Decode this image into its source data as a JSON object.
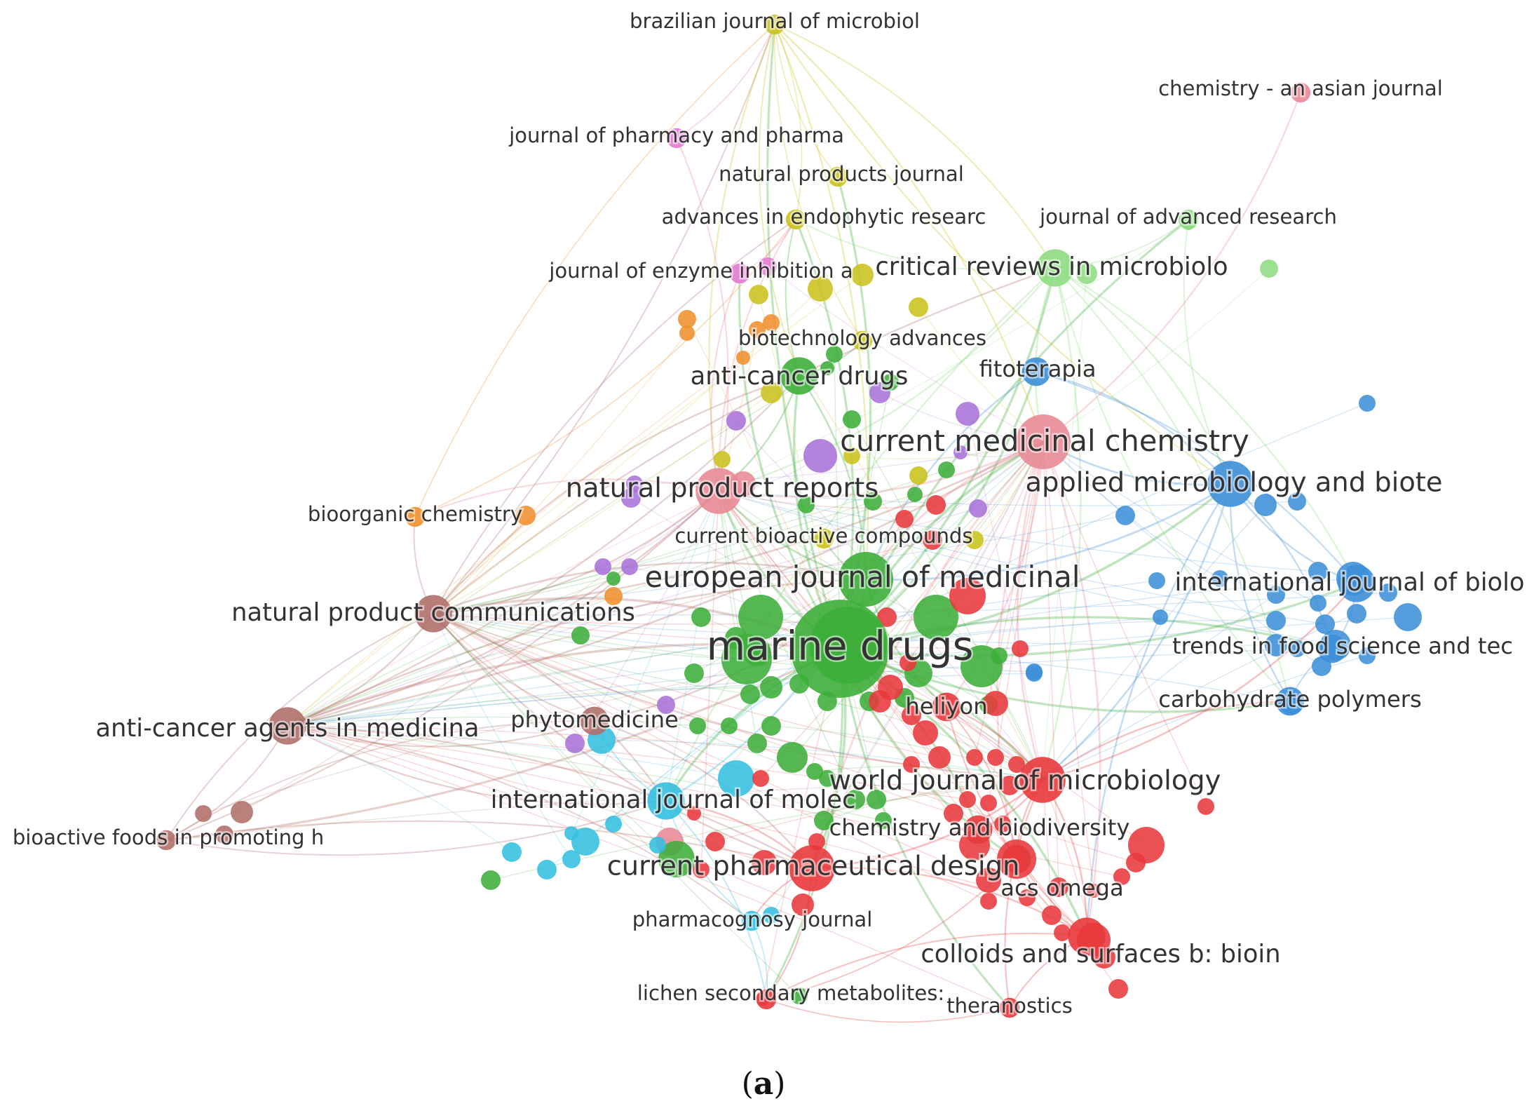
{
  "figure": {
    "caption_open": "(",
    "caption_letter": "a",
    "caption_close": ")"
  },
  "clusters": {
    "red": "#e8393c",
    "green": "#3dae3a",
    "blue": "#3d8fd8",
    "yellow": "#c9c31c",
    "purple": "#a872d8",
    "cyan": "#33bfe0",
    "orange": "#f0902e",
    "brown": "#b0706a",
    "pink": "#e88a96",
    "magenta": "#e07ad0",
    "lightgreen": "#8fdc83"
  },
  "labeled_nodes": [
    {
      "id": "brazilian",
      "label": "brazilian journal of microbiol",
      "cluster": "yellow",
      "weight": 1
    },
    {
      "id": "asian",
      "label": "chemistry - an asian journal",
      "cluster": "pink",
      "weight": 1
    },
    {
      "id": "pharmapharma",
      "label": "journal of pharmacy and pharma",
      "cluster": "magenta",
      "weight": 1
    },
    {
      "id": "npj",
      "label": "natural products journal",
      "cluster": "yellow",
      "weight": 1
    },
    {
      "id": "endophytic",
      "label": "advances in endophytic researc",
      "cluster": "yellow",
      "weight": 1
    },
    {
      "id": "advres",
      "label": "journal of advanced research",
      "cluster": "lightgreen",
      "weight": 1
    },
    {
      "id": "enzyme",
      "label": "journal of enzyme inhibition a",
      "cluster": "magenta",
      "weight": 1
    },
    {
      "id": "critrev",
      "label": "critical reviews in microbiolo",
      "cluster": "lightgreen",
      "weight": 3
    },
    {
      "id": "biotechadv",
      "label": "biotechnology advances",
      "cluster": "yellow",
      "weight": 1
    },
    {
      "id": "anticancerdrugs",
      "label": "anti-cancer drugs",
      "cluster": "green",
      "weight": 3
    },
    {
      "id": "fitoterapia",
      "label": "fitoterapia",
      "cluster": "blue",
      "weight": 2
    },
    {
      "id": "curmedchem",
      "label": "current medicinal chemistry",
      "cluster": "pink",
      "weight": 5
    },
    {
      "id": "appmicro",
      "label": "applied microbiology and biote",
      "cluster": "blue",
      "weight": 4
    },
    {
      "id": "npreports",
      "label": "natural product reports",
      "cluster": "pink",
      "weight": 4
    },
    {
      "id": "bioorganic",
      "label": "bioorganic chemistry",
      "cluster": "orange",
      "weight": 1
    },
    {
      "id": "curbioactive",
      "label": "current bioactive compounds",
      "cluster": "yellow",
      "weight": 1
    },
    {
      "id": "eurjmedchem",
      "label": "european journal of medicinal",
      "cluster": "green",
      "weight": 5
    },
    {
      "id": "ijbiolo",
      "label": "international journal of biolo",
      "cluster": "blue",
      "weight": 3
    },
    {
      "id": "npcomm",
      "label": "natural product communications",
      "cluster": "brown",
      "weight": 3
    },
    {
      "id": "marinedrugs",
      "label": "marine drugs",
      "cluster": "green",
      "weight": 10
    },
    {
      "id": "trendsfood",
      "label": "trends in food science and tec",
      "cluster": "blue",
      "weight": 2
    },
    {
      "id": "carbpoly",
      "label": "carbohydrate polymers",
      "cluster": "blue",
      "weight": 2
    },
    {
      "id": "heliyon",
      "label": "heliyon",
      "cluster": "red",
      "weight": 2
    },
    {
      "id": "anticanceragents",
      "label": "anti-cancer agents in medicina",
      "cluster": "brown",
      "weight": 3
    },
    {
      "id": "phytomedicine",
      "label": "phytomedicine",
      "cluster": "brown",
      "weight": 2
    },
    {
      "id": "wjmicro",
      "label": "world journal of microbiology",
      "cluster": "red",
      "weight": 4
    },
    {
      "id": "ijmolec",
      "label": "international journal of molec",
      "cluster": "cyan",
      "weight": 3
    },
    {
      "id": "chembiodiv",
      "label": "chemistry and biodiversity",
      "cluster": "red",
      "weight": 2
    },
    {
      "id": "bioactivefoods",
      "label": "bioactive foods in promoting h",
      "cluster": "brown",
      "weight": 1
    },
    {
      "id": "curpharmdesign",
      "label": "current pharmaceutical design",
      "cluster": "red",
      "weight": 4
    },
    {
      "id": "acsomega",
      "label": "acs omega",
      "cluster": "red",
      "weight": 2
    },
    {
      "id": "pharmacognosy",
      "label": "pharmacognosy journal",
      "cluster": "cyan",
      "weight": 1
    },
    {
      "id": "colloids",
      "label": "colloids and surfaces b: bioin",
      "cluster": "red",
      "weight": 3
    },
    {
      "id": "lichen",
      "label": "lichen secondary metabolites:",
      "cluster": "red",
      "weight": 1
    },
    {
      "id": "theranostics",
      "label": "theranostics",
      "cluster": "red",
      "weight": 1
    }
  ]
}
